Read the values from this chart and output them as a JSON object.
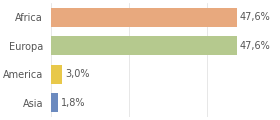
{
  "categories": [
    "Africa",
    "Europa",
    "America",
    "Asia"
  ],
  "values": [
    47.6,
    47.6,
    3.0,
    1.8
  ],
  "labels": [
    "47,6%",
    "47,6%",
    "3,0%",
    "1,8%"
  ],
  "bar_colors": [
    "#e8a97e",
    "#b5c98e",
    "#e8c84a",
    "#6b8abf"
  ],
  "background_color": "#ffffff",
  "xlim": [
    0,
    58
  ],
  "label_fontsize": 7.0,
  "tick_fontsize": 7.0,
  "grid_color": "#dddddd"
}
